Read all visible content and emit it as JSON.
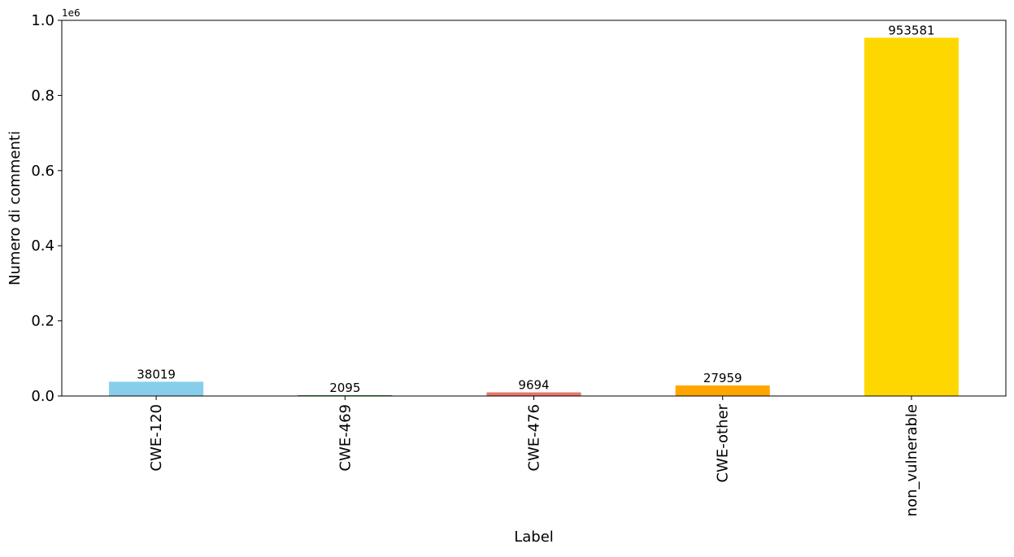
{
  "chart_data": {
    "type": "bar",
    "title": "",
    "xlabel": "Label",
    "ylabel": "Numero di commenti",
    "y_offset_text": "1e6",
    "y_scale_factor": 1000000,
    "ylim": [
      0,
      1000000
    ],
    "y_ticks": [
      0,
      200000,
      400000,
      600000,
      800000,
      1000000
    ],
    "y_tick_labels": [
      "0.0",
      "0.2",
      "0.4",
      "0.6",
      "0.8",
      "1.0"
    ],
    "categories": [
      "CWE-120",
      "CWE-469",
      "CWE-476",
      "CWE-other",
      "non_vulnerable"
    ],
    "values": [
      38019,
      2095,
      9694,
      27959,
      953581
    ],
    "data_labels": [
      "38019",
      "2095",
      "9694",
      "27959",
      "953581"
    ],
    "colors": [
      "#87ceeb",
      "#2ca02c",
      "#e9756b",
      "#ffa500",
      "#ffd700"
    ],
    "grid": false,
    "legend": false,
    "x_tick_rotation": "vertical"
  }
}
